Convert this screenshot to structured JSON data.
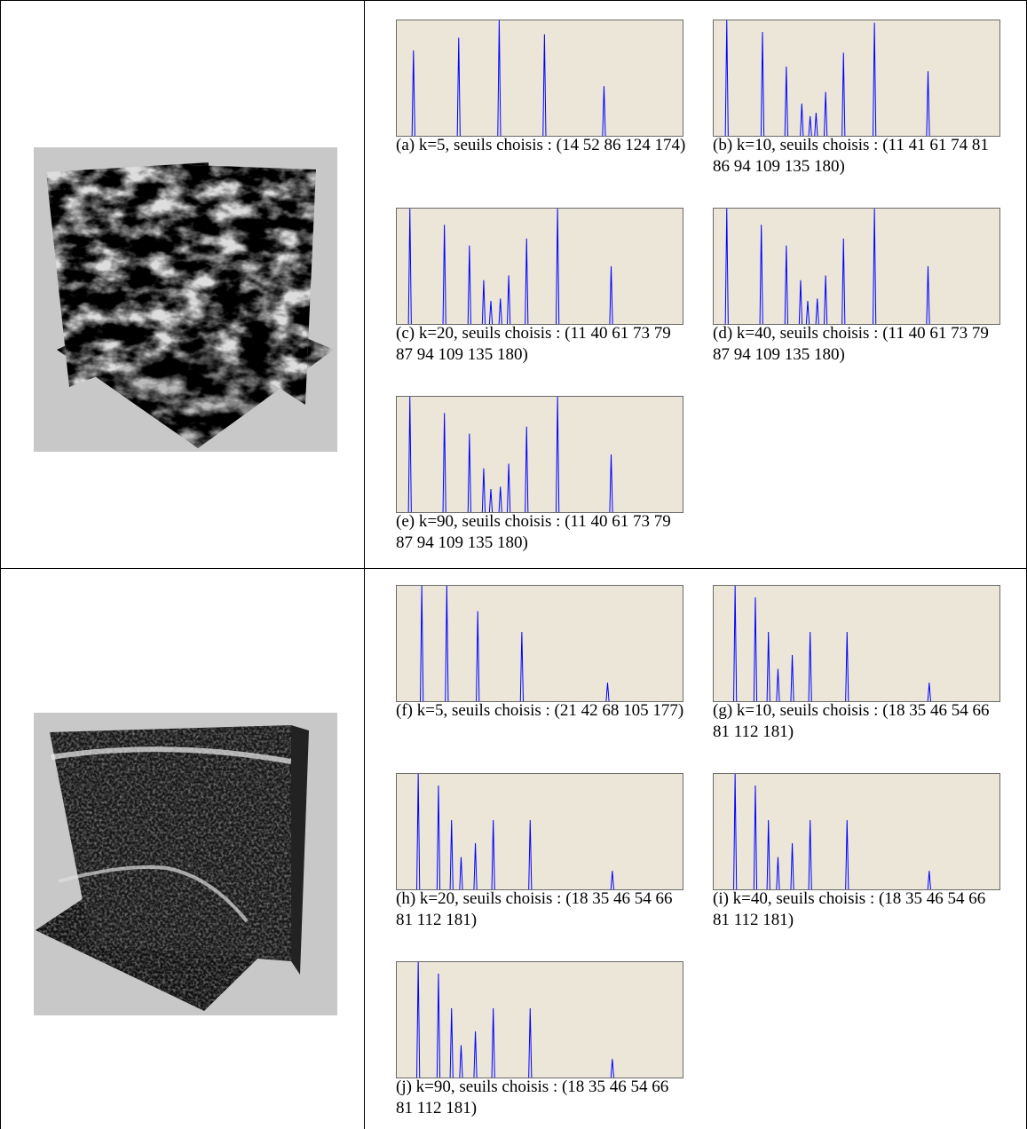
{
  "spike_axis": {
    "xlim": [
      0,
      240
    ],
    "ylim": [
      0,
      1
    ]
  },
  "rows": [
    {
      "panels": [
        {
          "caption": "(a) k=5, seuils choisis : (14 52 86 124 174)",
          "spikes": {
            "x": [
              14,
              52,
              86,
              124,
              174
            ],
            "height": [
              0.74,
              0.85,
              1.0,
              0.88,
              0.43
            ]
          }
        },
        {
          "caption": "(b) k=10, seuils choisis : (11 41 61 74 81 86 94 109 135 180)",
          "spikes": {
            "x": [
              11,
              41,
              61,
              74,
              81,
              86,
              94,
              109,
              135,
              180
            ],
            "height": [
              1.0,
              0.9,
              0.6,
              0.28,
              0.17,
              0.2,
              0.38,
              0.72,
              0.98,
              0.56
            ]
          }
        },
        {
          "caption": "(c) k=20, seuils choisis : (11 40 61 73 79 87 94 109 135 180)",
          "spikes": {
            "x": [
              11,
              40,
              61,
              73,
              79,
              87,
              94,
              109,
              135,
              180
            ],
            "height": [
              1.0,
              0.86,
              0.68,
              0.38,
              0.2,
              0.22,
              0.42,
              0.74,
              1.0,
              0.5
            ]
          }
        },
        {
          "caption": "(d) k=40, seuils choisis : (11 40 61 73 79 87 94 109 135 180)",
          "spikes": {
            "x": [
              11,
              40,
              61,
              73,
              79,
              87,
              94,
              109,
              135,
              180
            ],
            "height": [
              1.0,
              0.86,
              0.68,
              0.38,
              0.2,
              0.22,
              0.42,
              0.74,
              1.0,
              0.5
            ]
          }
        },
        {
          "caption": "(e) k=90, seuils choisis : (11 40 61 73 79 87 94 109 135 180)",
          "spikes": {
            "x": [
              11,
              40,
              61,
              73,
              79,
              87,
              94,
              109,
              135,
              180
            ],
            "height": [
              1.0,
              0.86,
              0.68,
              0.38,
              0.2,
              0.22,
              0.42,
              0.74,
              1.0,
              0.5
            ]
          }
        }
      ]
    },
    {
      "panels": [
        {
          "caption": "(f) k=5, seuils choisis : (21 42 68 105 177)",
          "spikes": {
            "x": [
              21,
              42,
              68,
              105,
              177
            ],
            "height": [
              1.0,
              1.0,
              0.78,
              0.6,
              0.16
            ]
          }
        },
        {
          "caption": "(g) k=10, seuils choisis : (18 35 46 54 66 81 112 181)",
          "spikes": {
            "x": [
              18,
              35,
              46,
              54,
              66,
              81,
              112,
              181
            ],
            "height": [
              1.0,
              0.9,
              0.6,
              0.28,
              0.4,
              0.6,
              0.6,
              0.16
            ]
          }
        },
        {
          "caption": "(h) k=20, seuils choisis : (18 35 46 54 66 81 112 181)",
          "spikes": {
            "x": [
              18,
              35,
              46,
              54,
              66,
              81,
              112,
              181
            ],
            "height": [
              1.0,
              0.9,
              0.6,
              0.28,
              0.4,
              0.6,
              0.6,
              0.16
            ]
          }
        },
        {
          "caption": "(i) k=40, seuils choisis : (18 35 46 54 66 81 112 181)",
          "spikes": {
            "x": [
              18,
              35,
              46,
              54,
              66,
              81,
              112,
              181
            ],
            "height": [
              1.0,
              0.9,
              0.6,
              0.28,
              0.4,
              0.6,
              0.6,
              0.16
            ]
          }
        },
        {
          "caption": "(j) k=90, seuils choisis : (18 35 46 54 66 81 112 181)",
          "spikes": {
            "x": [
              18,
              35,
              46,
              54,
              66,
              81,
              112,
              181
            ],
            "height": [
              1.0,
              0.9,
              0.6,
              0.28,
              0.4,
              0.6,
              0.6,
              0.16
            ]
          }
        }
      ]
    }
  ]
}
